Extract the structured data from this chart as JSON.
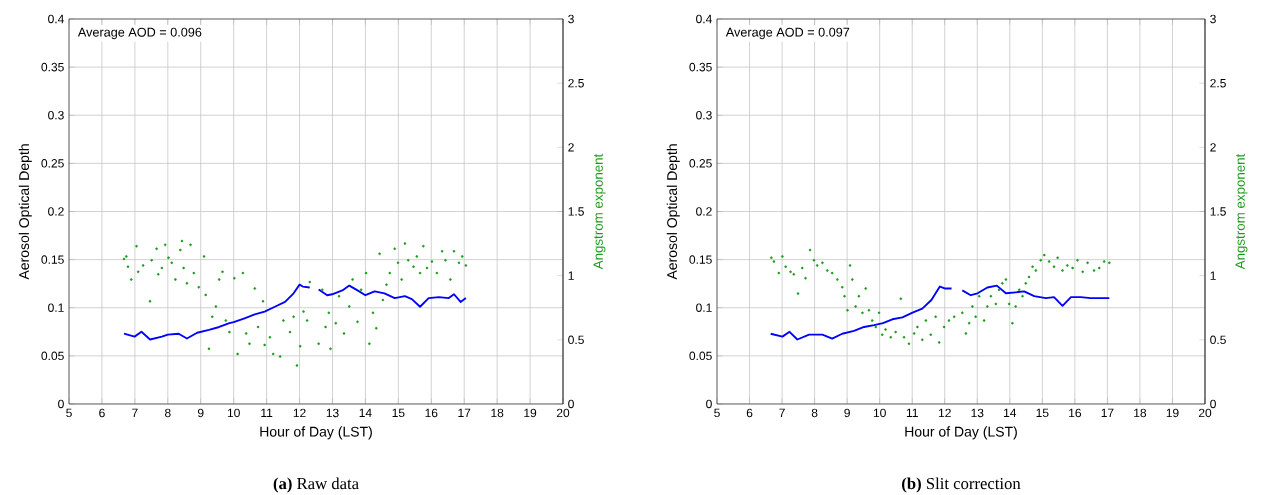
{
  "chart_data": [
    {
      "type": "line",
      "title": "**(a)** Raw data",
      "xlabel": "Hour of Day (LST)",
      "ylabel": "Aerosol Optical Depth",
      "y2label": "Angstrom exponent",
      "annotations": [
        "Average AOD =  0.096"
      ],
      "xlim": [
        5,
        20
      ],
      "xticks": [
        5,
        6,
        7,
        8,
        9,
        10,
        11,
        12,
        13,
        14,
        15,
        16,
        17,
        18,
        19,
        20
      ],
      "ylim": [
        0,
        0.4
      ],
      "yticks": [
        0,
        0.05,
        0.1,
        0.15,
        0.2,
        0.25,
        0.3,
        0.35,
        0.4
      ],
      "y2lim": [
        0,
        3
      ],
      "y2ticks": [
        0,
        0.5,
        1,
        1.5,
        2,
        2.5,
        3
      ],
      "grid": true,
      "series": [
        {
          "color": "#0000ff",
          "x": [
            6.67,
            6.99,
            7.2,
            7.46,
            7.82,
            8.0,
            8.33,
            8.58,
            8.89,
            9.25,
            9.56,
            9.87,
            10.0,
            10.33,
            10.64,
            10.94,
            11.25,
            11.56,
            11.82,
            12.0,
            12.1,
            12.31,
            12.45,
            12.58,
            12.84,
            12.99,
            13.3,
            13.51,
            13.76,
            14.0,
            14.28,
            14.58,
            14.89,
            15.2,
            15.41,
            15.66,
            15.92,
            16.23,
            16.53,
            16.69,
            16.89,
            17.05
          ],
          "values": [
            0.073,
            0.07,
            0.075,
            0.067,
            0.07,
            0.072,
            0.073,
            0.068,
            0.074,
            0.077,
            0.08,
            0.084,
            0.085,
            0.089,
            0.093,
            0.096,
            0.101,
            0.106,
            0.115,
            0.124,
            0.122,
            0.121,
            null,
            0.119,
            0.113,
            0.114,
            0.118,
            0.123,
            0.118,
            0.113,
            0.117,
            0.115,
            0.11,
            0.112,
            0.109,
            0.101,
            0.11,
            0.111,
            0.11,
            0.114,
            0.106,
            0.11
          ]
        },
        {
          "type": "scatter",
          "axis": "y2",
          "color": "#1a9a1a",
          "x": [
            6.67,
            6.74,
            6.79,
            6.89,
            7.05,
            7.1,
            7.25,
            7.46,
            7.51,
            7.66,
            7.71,
            7.82,
            7.92,
            8.02,
            8.12,
            8.23,
            8.38,
            8.43,
            8.48,
            8.58,
            8.69,
            8.79,
            8.94,
            9.1,
            9.15,
            9.25,
            9.35,
            9.46,
            9.56,
            9.66,
            9.76,
            9.87,
            10.02,
            10.12,
            10.28,
            10.38,
            10.48,
            10.64,
            10.74,
            10.89,
            10.94,
            11.1,
            11.2,
            11.41,
            11.51,
            11.71,
            11.82,
            11.92,
            12.02,
            12.12,
            12.23,
            12.31,
            12.58,
            12.69,
            12.79,
            12.89,
            12.94,
            13.1,
            13.2,
            13.35,
            13.51,
            13.61,
            13.76,
            13.87,
            14.02,
            14.12,
            14.23,
            14.33,
            14.43,
            14.53,
            14.64,
            14.74,
            14.89,
            14.99,
            15.1,
            15.2,
            15.3,
            15.46,
            15.56,
            15.66,
            15.76,
            15.87,
            16.02,
            16.17,
            16.33,
            16.43,
            16.58,
            16.69,
            16.84,
            16.94,
            17.05
          ],
          "values": [
            1.13,
            1.15,
            1.07,
            0.97,
            1.23,
            1.03,
            1.08,
            0.8,
            1.12,
            1.21,
            1.01,
            1.06,
            1.24,
            1.14,
            1.1,
            0.97,
            1.2,
            1.27,
            1.06,
            0.94,
            1.24,
            1.02,
            0.91,
            1.15,
            0.85,
            0.43,
            0.68,
            0.76,
            0.97,
            1.03,
            0.65,
            0.56,
            0.98,
            0.39,
            1.02,
            0.55,
            0.47,
            0.9,
            0.6,
            0.8,
            0.46,
            0.52,
            0.39,
            0.37,
            0.65,
            0.56,
            0.68,
            0.3,
            0.45,
            0.72,
            0.65,
            0.95,
            0.47,
            0.89,
            0.6,
            0.71,
            0.43,
            0.63,
            0.84,
            0.55,
            0.76,
            0.97,
            0.64,
            0.89,
            1.02,
            0.47,
            0.71,
            0.59,
            1.17,
            0.81,
            0.93,
            1.02,
            1.21,
            1.1,
            0.97,
            1.25,
            1.12,
            1.07,
            1.15,
            1.02,
            1.23,
            1.06,
            1.11,
            1.02,
            1.19,
            1.12,
            0.97,
            1.19,
            1.1,
            1.15,
            1.08
          ]
        }
      ]
    },
    {
      "type": "line",
      "title": "**(b)** Slit correction",
      "xlabel": "Hour of Day (LST)",
      "ylabel": "Aerosol Optical Depth",
      "y2label": "Angstrom exponent",
      "annotations": [
        "Average AOD =  0.097"
      ],
      "xlim": [
        5,
        20
      ],
      "xticks": [
        5,
        6,
        7,
        8,
        9,
        10,
        11,
        12,
        13,
        14,
        15,
        16,
        17,
        18,
        19,
        20
      ],
      "ylim": [
        0,
        0.4
      ],
      "yticks": [
        0,
        0.05,
        0.1,
        0.15,
        0.2,
        0.25,
        0.3,
        0.35,
        0.4
      ],
      "y2lim": [
        0,
        3
      ],
      "y2ticks": [
        0,
        0.5,
        1,
        1.5,
        2,
        2.5,
        3
      ],
      "grid": true,
      "series": [
        {
          "color": "#0000ff",
          "x": [
            6.65,
            7.01,
            7.23,
            7.47,
            7.83,
            8.24,
            8.54,
            8.85,
            9.21,
            9.52,
            9.83,
            10.1,
            10.39,
            10.7,
            11.01,
            11.31,
            11.59,
            11.85,
            12.0,
            12.21,
            12.4,
            12.54,
            12.8,
            13.01,
            13.31,
            13.6,
            13.88,
            14.18,
            14.44,
            14.75,
            15.11,
            15.36,
            15.62,
            15.88,
            16.18,
            16.49,
            16.75,
            17.06
          ],
          "values": [
            0.073,
            0.07,
            0.075,
            0.067,
            0.072,
            0.072,
            0.068,
            0.073,
            0.076,
            0.08,
            0.082,
            0.084,
            0.088,
            0.09,
            0.095,
            0.099,
            0.108,
            0.122,
            0.12,
            0.12,
            null,
            0.118,
            0.113,
            0.115,
            0.121,
            0.123,
            0.115,
            0.116,
            0.117,
            0.112,
            0.11,
            0.111,
            0.102,
            0.111,
            0.111,
            0.11,
            0.11,
            0.11
          ]
        },
        {
          "type": "scatter",
          "axis": "y2",
          "color": "#1a9a1a",
          "x": [
            6.67,
            6.75,
            6.9,
            7.01,
            7.11,
            7.26,
            7.36,
            7.49,
            7.62,
            7.72,
            7.86,
            7.98,
            8.08,
            8.24,
            8.39,
            8.54,
            8.7,
            8.85,
            8.92,
            9.01,
            9.09,
            9.16,
            9.26,
            9.36,
            9.47,
            9.57,
            9.67,
            9.77,
            9.88,
            9.98,
            10.08,
            10.18,
            10.34,
            10.49,
            10.65,
            10.75,
            10.9,
            11.06,
            11.16,
            11.31,
            11.42,
            11.57,
            11.72,
            11.83,
            11.98,
            12.13,
            12.29,
            12.54,
            12.65,
            12.75,
            12.85,
            12.95,
            13.06,
            13.21,
            13.31,
            13.42,
            13.57,
            13.67,
            13.77,
            13.88,
            13.98,
            14.08,
            14.18,
            14.29,
            14.39,
            14.49,
            14.59,
            14.7,
            14.8,
            14.95,
            15.06,
            15.21,
            15.36,
            15.47,
            15.62,
            15.77,
            15.93,
            16.08,
            16.24,
            16.39,
            16.59,
            16.75,
            16.9,
            17.06
          ],
          "values": [
            1.14,
            1.11,
            1.02,
            1.15,
            1.07,
            1.03,
            1.01,
            0.86,
            1.06,
            0.98,
            1.2,
            1.12,
            1.08,
            1.1,
            1.04,
            1.02,
            0.97,
            0.91,
            0.84,
            0.73,
            1.08,
            0.97,
            0.76,
            0.84,
            0.71,
            0.9,
            0.73,
            0.65,
            0.6,
            0.71,
            0.54,
            0.58,
            0.52,
            0.56,
            0.82,
            0.52,
            0.47,
            0.55,
            0.6,
            0.5,
            0.65,
            0.54,
            0.68,
            0.48,
            0.6,
            0.65,
            0.68,
            0.71,
            0.55,
            0.63,
            0.76,
            0.68,
            0.84,
            0.65,
            0.76,
            0.84,
            0.78,
            0.89,
            0.94,
            0.97,
            0.78,
            0.63,
            0.76,
            0.89,
            0.84,
            0.94,
            0.99,
            1.07,
            1.04,
            1.12,
            1.16,
            1.11,
            1.07,
            1.14,
            1.04,
            1.08,
            1.06,
            1.12,
            1.03,
            1.1,
            1.04,
            1.06,
            1.11,
            1.1
          ]
        }
      ]
    }
  ]
}
